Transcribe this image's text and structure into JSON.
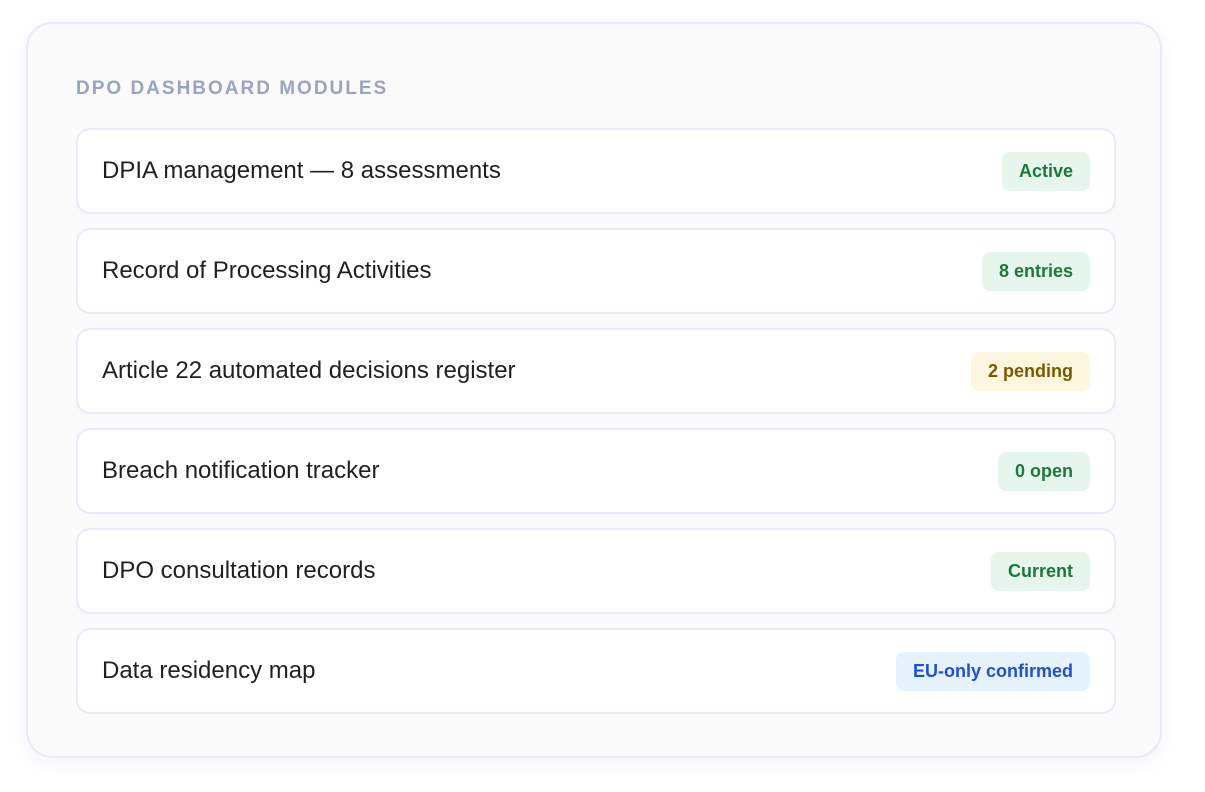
{
  "panel": {
    "title": "DPO DASHBOARD MODULES"
  },
  "modules": [
    {
      "label": "DPIA management — 8 assessments",
      "badge": "Active",
      "status": "green"
    },
    {
      "label": "Record of Processing Activities",
      "badge": "8 entries",
      "status": "green"
    },
    {
      "label": "Article 22 automated decisions register",
      "badge": "2 pending",
      "status": "yellow"
    },
    {
      "label": "Breach notification tracker",
      "badge": "0 open",
      "status": "green"
    },
    {
      "label": "DPO consultation records",
      "badge": "Current",
      "status": "green"
    },
    {
      "label": "Data residency map",
      "badge": "EU-only confirmed",
      "status": "blue"
    }
  ],
  "colors": {
    "green": "#197a3c",
    "yellow": "#7a5a00",
    "blue": "#1f4fd6",
    "title": "#97a6be"
  }
}
